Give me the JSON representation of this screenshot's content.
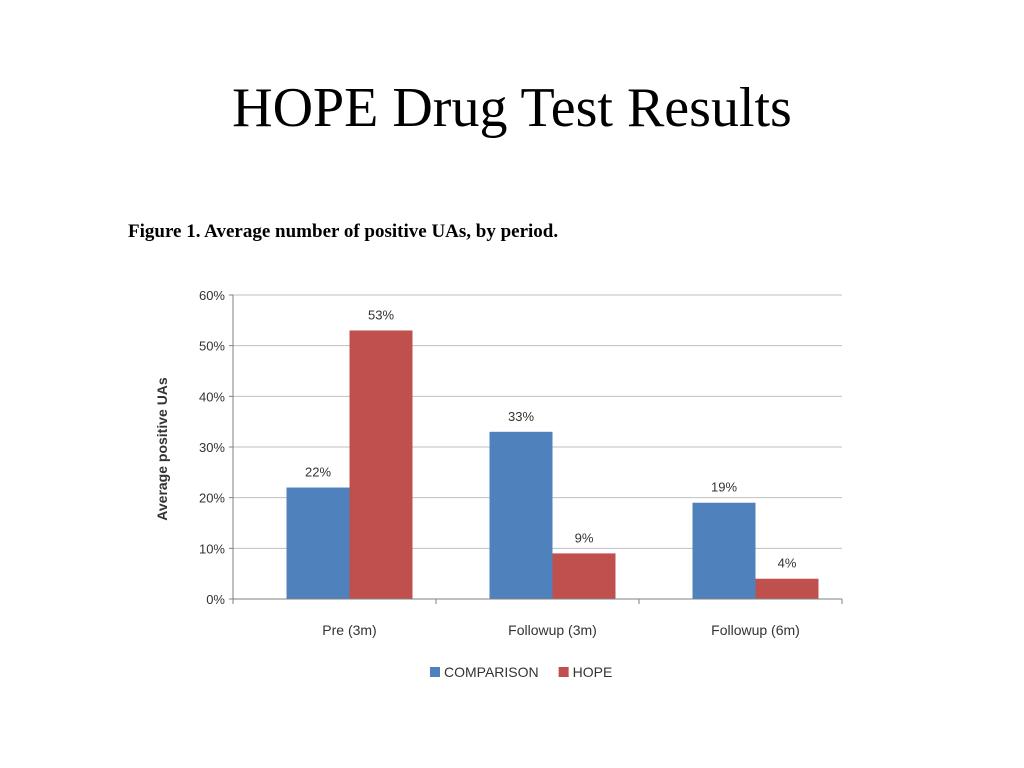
{
  "slide": {
    "title": "HOPE Drug Test Results",
    "figure_caption": "Figure 1.  Average number of positive UAs, by period."
  },
  "chart_data": {
    "type": "bar",
    "categories": [
      "Pre (3m)",
      "Followup (3m)",
      "Followup (6m)"
    ],
    "series": [
      {
        "name": "COMPARISON",
        "values": [
          22,
          33,
          19
        ],
        "labels": [
          "22%",
          "33%",
          "19%"
        ],
        "color": "#4f81bd"
      },
      {
        "name": "HOPE",
        "values": [
          53,
          9,
          4
        ],
        "labels": [
          "53%",
          "9%",
          "4%"
        ],
        "color": "#c0504d"
      }
    ],
    "ylabel": "Average positive UAs",
    "ylim": [
      0,
      60
    ],
    "yticks": [
      0,
      10,
      20,
      30,
      40,
      50,
      60
    ],
    "ytick_labels": [
      "0%",
      "10%",
      "20%",
      "30%",
      "40%",
      "50%",
      "60%"
    ],
    "grid": true,
    "legend": "bottom"
  }
}
